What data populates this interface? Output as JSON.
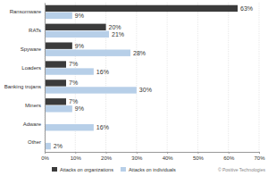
{
  "chart_data": {
    "type": "bar",
    "orientation": "horizontal",
    "data_labels": true,
    "grid": true,
    "legend": "bottom",
    "categories": [
      "Ransomware",
      "RATs",
      "Spyware",
      "Loaders",
      "Banking trojans",
      "Miners",
      "Adware",
      "Other"
    ],
    "series": [
      {
        "name": "Attacks on organizations",
        "color": "#3b3b3b",
        "values": [
          63,
          20,
          9,
          7,
          7,
          7,
          null,
          null
        ],
        "value_labels": [
          "63%",
          "20%",
          "9%",
          "7%",
          "7%",
          "7%",
          null,
          null
        ]
      },
      {
        "name": "Attacks on individuals",
        "color": "#b7cfe8",
        "values": [
          9,
          21,
          28,
          16,
          30,
          9,
          16,
          2
        ],
        "value_labels": [
          "9%",
          "21%",
          "28%",
          "16%",
          "30%",
          "9%",
          "16%",
          "2%"
        ]
      }
    ],
    "xlim": [
      0,
      70
    ],
    "xticks": [
      {
        "value": 0,
        "label": "0%"
      },
      {
        "value": 10,
        "label": "10%"
      },
      {
        "value": 20,
        "label": "20%"
      },
      {
        "value": 30,
        "label": "30%"
      },
      {
        "value": 40,
        "label": "40%"
      },
      {
        "value": 50,
        "label": "50%"
      },
      {
        "value": 60,
        "label": "60%"
      },
      {
        "value": 70,
        "label": "70%"
      }
    ],
    "annotations": [
      "© Positive Technologies"
    ]
  }
}
